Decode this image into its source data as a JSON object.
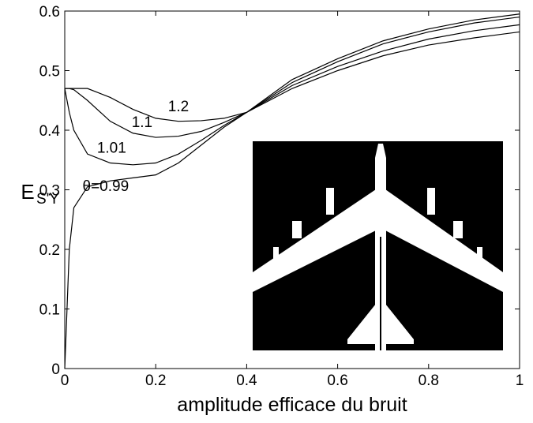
{
  "chart_data": {
    "type": "line",
    "xlabel": "amplitude efficace du bruit",
    "ylabel": "E",
    "ylabel_sub": "S'Y",
    "x": [
      0,
      0.01,
      0.02,
      0.05,
      0.1,
      0.15,
      0.2,
      0.25,
      0.3,
      0.35,
      0.4,
      0.5,
      0.6,
      0.7,
      0.8,
      0.9,
      1
    ],
    "series": [
      {
        "name": "θ=0.99",
        "color": "#000000",
        "values": [
          0,
          0.2,
          0.27,
          0.305,
          0.315,
          0.32,
          0.325,
          0.345,
          0.375,
          0.405,
          0.43,
          0.47,
          0.5,
          0.525,
          0.543,
          0.555,
          0.565
        ]
      },
      {
        "name": "1.01",
        "color": "#000000",
        "values": [
          0.47,
          0.43,
          0.4,
          0.36,
          0.345,
          0.342,
          0.345,
          0.36,
          0.383,
          0.408,
          0.43,
          0.475,
          0.507,
          0.533,
          0.553,
          0.567,
          0.577
        ]
      },
      {
        "name": "1.1",
        "color": "#000000",
        "values": [
          0.47,
          0.47,
          0.468,
          0.45,
          0.415,
          0.395,
          0.388,
          0.39,
          0.398,
          0.413,
          0.43,
          0.48,
          0.515,
          0.545,
          0.565,
          0.58,
          0.59
        ]
      },
      {
        "name": "1.2",
        "color": "#000000",
        "values": [
          0.47,
          0.47,
          0.47,
          0.47,
          0.455,
          0.435,
          0.42,
          0.415,
          0.416,
          0.42,
          0.43,
          0.485,
          0.52,
          0.55,
          0.57,
          0.585,
          0.595
        ]
      }
    ],
    "xlim": [
      0,
      1
    ],
    "xticks": [
      0,
      0.2,
      0.4,
      0.6,
      0.8,
      1
    ],
    "ylim": [
      0,
      0.6
    ],
    "yticks": [
      0,
      0.1,
      0.2,
      0.3,
      0.4,
      0.5,
      0.6
    ],
    "grid": false
  }
}
